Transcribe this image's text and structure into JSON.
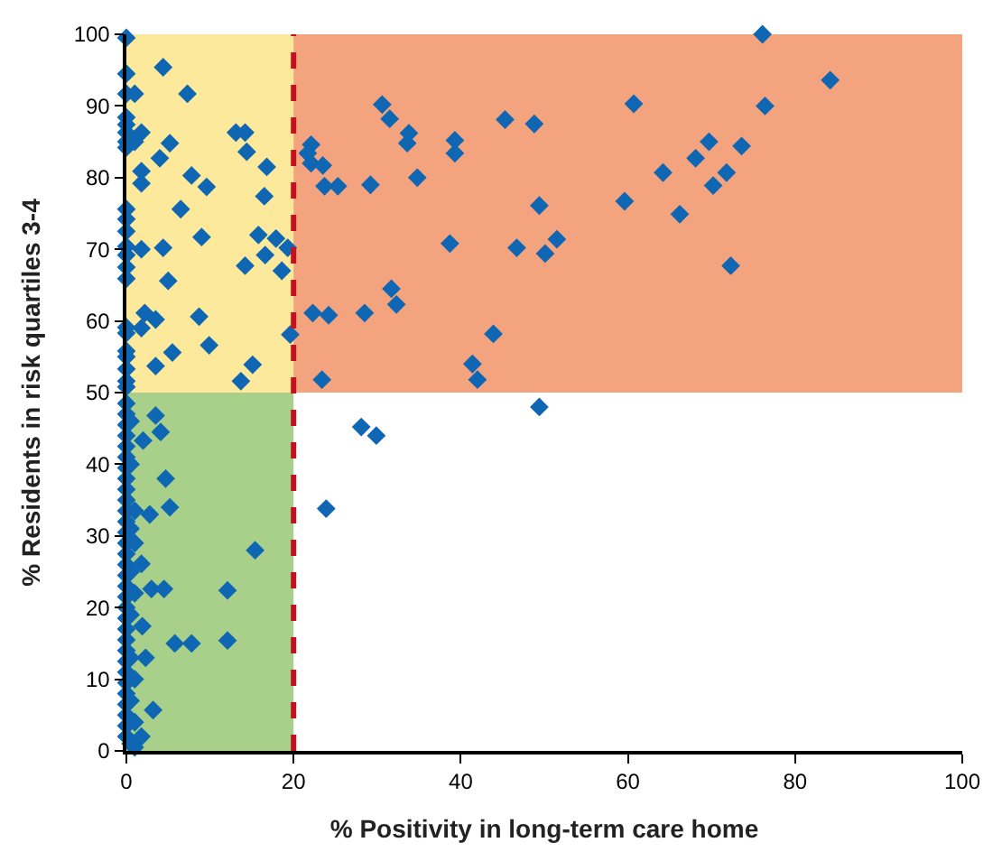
{
  "chart_data": {
    "type": "scatter",
    "xlabel": "% Positivity in long-term care home",
    "ylabel": "% Residents in risk quartiles 3-4",
    "xlim": [
      0,
      100
    ],
    "ylim": [
      0,
      100
    ],
    "xticks": [
      0,
      20,
      40,
      60,
      80,
      100
    ],
    "yticks": [
      0,
      10,
      20,
      30,
      40,
      50,
      60,
      70,
      80,
      90,
      100
    ],
    "grid": false,
    "marker": "diamond",
    "bands": [
      {
        "axis": "x",
        "from": 0,
        "to": 20,
        "color": "#a8d08a"
      },
      {
        "axis": "y",
        "from": 50,
        "to": 100,
        "color": "#f3a47f"
      },
      {
        "axis": "x",
        "from": 0,
        "to": 20,
        "color": "#fce99c"
      }
    ],
    "ref_lines": [
      {
        "axis": "x",
        "value": 20,
        "color": "#c1121f",
        "line_style": "dashed"
      }
    ],
    "series": [
      {
        "color": "#0f66b2",
        "x": [
          0,
          0,
          0,
          0,
          0,
          0,
          0,
          0,
          0,
          0,
          0,
          0,
          0,
          0,
          0,
          0,
          0,
          0,
          0,
          0,
          0,
          0,
          1,
          1.8,
          1,
          4.4,
          7.3,
          13.1,
          14.2,
          5.2,
          14.4,
          4,
          1.8,
          16.8,
          7.8,
          9.6,
          1.8,
          16.5,
          6.5,
          9,
          15.8,
          17.9,
          19.3,
          1.8,
          4.4,
          16.6,
          14.2,
          18.6,
          5,
          2.2,
          1.8,
          3.5,
          8.7,
          9.9,
          5.5,
          3.5,
          19.6,
          15.1,
          13.7,
          0,
          0,
          0,
          0,
          0,
          0,
          0,
          0,
          0,
          0,
          0,
          0,
          0,
          0,
          0,
          0,
          0,
          0,
          0,
          0,
          0,
          0,
          0,
          0,
          0,
          0,
          0,
          0,
          0,
          0,
          0,
          0,
          0.5,
          0.5,
          0.5,
          0.5,
          0.5,
          0.5,
          0.5,
          0.5,
          1,
          1,
          1,
          1,
          3.5,
          4.1,
          2,
          4.7,
          5.2,
          2.8,
          1,
          15.4,
          1.8,
          3,
          4.5,
          12.1,
          5.8,
          7.8,
          12.1,
          2.3,
          3.2,
          1.9,
          1.8,
          1,
          30.6,
          31.5,
          45.3,
          48.8,
          33.8,
          33.6,
          39.3,
          39.3,
          22.1,
          21.7,
          22.1,
          23.5,
          23.7,
          25.3,
          29.2,
          34.8,
          49.4,
          59.6,
          60.7,
          38.7,
          46.7,
          50.1,
          51.5,
          31.7,
          32.3,
          22.3,
          24.2,
          28.5,
          43.9,
          41.4,
          42,
          23.4,
          49.4,
          28.1,
          29.9,
          23.9,
          76.1,
          84.2,
          76.4,
          69.7,
          73.6,
          68.1,
          64.2,
          71.8,
          70.2,
          66.2,
          72.3
        ],
        "values": [
          99.5,
          94.5,
          91.7,
          88.4,
          87.4,
          86.3,
          85,
          84.2,
          75.6,
          74.2,
          72.5,
          70.4,
          69.2,
          67.5,
          65.9,
          59.1,
          58.3,
          55.8,
          55,
          53.3,
          51.6,
          50.8,
          91.7,
          86.3,
          85,
          95.4,
          91.7,
          86.3,
          86.3,
          84.8,
          83.6,
          82.7,
          80.9,
          81.5,
          80.3,
          78.7,
          79.2,
          77.4,
          75.6,
          71.7,
          72,
          71.5,
          70.2,
          70,
          70.2,
          69.2,
          67.7,
          67,
          65.6,
          61.1,
          59,
          60.2,
          60.6,
          56.6,
          55.6,
          53.7,
          58.1,
          53.9,
          51.6,
          48.5,
          47,
          45.5,
          44,
          42.5,
          41,
          39.5,
          38,
          36.5,
          35,
          33.5,
          32,
          30.5,
          29,
          27.5,
          26,
          24.5,
          23,
          21.5,
          20,
          18.5,
          17,
          15.5,
          14,
          12.5,
          11,
          9.5,
          8,
          6.5,
          5,
          3.5,
          2,
          46,
          40,
          31,
          25,
          19,
          13,
          7,
          1,
          29,
          22,
          10,
          4,
          46.8,
          44.5,
          43.3,
          38,
          34,
          33,
          33.5,
          28,
          26.1,
          22.6,
          22.6,
          22.4,
          15,
          15,
          15.4,
          13,
          5.7,
          17.4,
          2,
          0.5,
          90.2,
          88.2,
          88.1,
          87.5,
          86.2,
          84.8,
          85.2,
          83.4,
          84.6,
          83.4,
          82,
          81.7,
          78.8,
          78.8,
          79,
          80,
          76.1,
          76.7,
          90.3,
          70.8,
          70.2,
          69.4,
          71.4,
          64.5,
          62.3,
          61.1,
          60.8,
          61.1,
          58.2,
          54,
          51.8,
          51.8,
          48,
          45.2,
          44,
          33.8,
          100,
          93.6,
          90,
          85,
          84.4,
          82.7,
          80.7,
          80.7,
          78.9,
          74.9,
          67.7
        ]
      }
    ]
  }
}
